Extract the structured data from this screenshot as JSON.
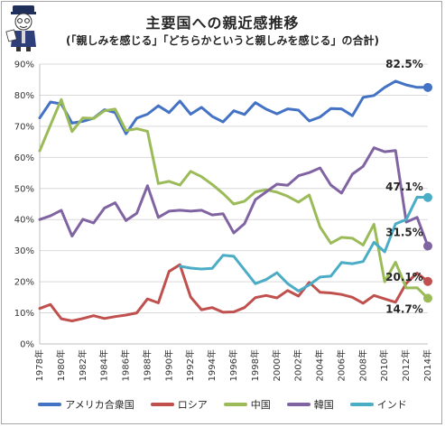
{
  "title": "主要国への親近感推移",
  "subtitle": "(「親しみを感じる」「どちらかというと親しみを感じる」の合計)",
  "chart_data": {
    "type": "line",
    "x": [
      1978,
      1979,
      1980,
      1981,
      1982,
      1983,
      1984,
      1985,
      1986,
      1987,
      1988,
      1989,
      1990,
      1991,
      1992,
      1993,
      1994,
      1995,
      1996,
      1997,
      1998,
      1999,
      2000,
      2001,
      2002,
      2003,
      2004,
      2005,
      2006,
      2007,
      2008,
      2009,
      2010,
      2011,
      2012,
      2013,
      2014
    ],
    "x_tick_labels": [
      "1978年",
      "1980年",
      "1982年",
      "1984年",
      "1986年",
      "1988年",
      "1990年",
      "1992年",
      "1994年",
      "1996年",
      "1998年",
      "2000年",
      "2002年",
      "2004年",
      "2006年",
      "2008年",
      "2010年",
      "2012年",
      "2014年"
    ],
    "y_tick_labels": [
      "0%",
      "10%",
      "20%",
      "30%",
      "40%",
      "50%",
      "60%",
      "70%",
      "80%",
      "90%"
    ],
    "ylim": [
      0,
      90
    ],
    "grid": true,
    "legend_position": "bottom",
    "series": [
      {
        "name": "アメリカ合衆国",
        "color": "#4472c4",
        "values": [
          72.7,
          77.8,
          77.2,
          71.0,
          71.6,
          72.6,
          75.3,
          74.4,
          67.6,
          72.6,
          73.9,
          76.6,
          74.4,
          78.1,
          73.9,
          76.1,
          73.2,
          71.4,
          75.0,
          73.8,
          77.6,
          75.5,
          74.0,
          75.6,
          75.2,
          71.7,
          73.0,
          75.7,
          75.6,
          73.4,
          79.3,
          79.9,
          82.5,
          84.5,
          83.3,
          82.5,
          82.5
        ]
      },
      {
        "name": "ロシア",
        "color": "#c0504d",
        "values": [
          11.4,
          12.7,
          8.1,
          7.4,
          8.2,
          9.1,
          8.2,
          8.8,
          9.3,
          10.0,
          14.5,
          13.2,
          23.3,
          25.5,
          15.1,
          11.0,
          11.7,
          10.2,
          10.3,
          11.7,
          14.9,
          15.6,
          14.8,
          17.2,
          15.4,
          19.8,
          16.6,
          16.4,
          15.9,
          15.0,
          13.1,
          15.6,
          14.5,
          13.4,
          19.5,
          22.8,
          20.1
        ]
      },
      {
        "name": "中国",
        "color": "#9bbb59",
        "values": [
          62.1,
          70.4,
          78.6,
          68.3,
          72.7,
          72.5,
          75.0,
          75.5,
          68.6,
          69.2,
          68.4,
          51.6,
          52.3,
          51.1,
          55.5,
          53.8,
          51.3,
          48.4,
          45.0,
          45.9,
          48.9,
          49.6,
          48.8,
          47.5,
          45.6,
          47.9,
          37.6,
          32.4,
          34.3,
          34.0,
          31.8,
          38.5,
          20.0,
          26.3,
          18.0,
          18.1,
          14.7
        ]
      },
      {
        "name": "韓国",
        "color": "#8064a2",
        "values": [
          40.0,
          41.2,
          43.0,
          34.7,
          40.1,
          38.9,
          43.7,
          45.4,
          39.7,
          42.0,
          50.9,
          40.7,
          42.7,
          43.0,
          42.7,
          43.0,
          41.5,
          41.9,
          35.7,
          38.7,
          46.4,
          48.9,
          51.4,
          51.0,
          54.1,
          55.1,
          56.6,
          51.1,
          48.5,
          54.6,
          57.1,
          63.1,
          61.8,
          62.2,
          39.2,
          40.7,
          31.5
        ]
      },
      {
        "name": "インド",
        "color": "#4bacc6",
        "values": [
          null,
          null,
          null,
          null,
          null,
          null,
          null,
          null,
          null,
          null,
          null,
          null,
          null,
          25.0,
          24.4,
          24.1,
          24.3,
          28.5,
          28.2,
          23.8,
          19.4,
          20.7,
          22.9,
          19.4,
          17.0,
          19.0,
          21.5,
          21.8,
          26.2,
          25.8,
          26.5,
          32.7,
          29.6,
          38.6,
          40.0,
          47.2,
          47.1
        ]
      }
    ],
    "end_labels": [
      {
        "series": 0,
        "text": "82.5%"
      },
      {
        "series": 4,
        "text": "47.1%"
      },
      {
        "series": 3,
        "text": "31.5%"
      },
      {
        "series": 1,
        "text": "20.1%"
      },
      {
        "series": 2,
        "text": "14.7%"
      }
    ]
  }
}
